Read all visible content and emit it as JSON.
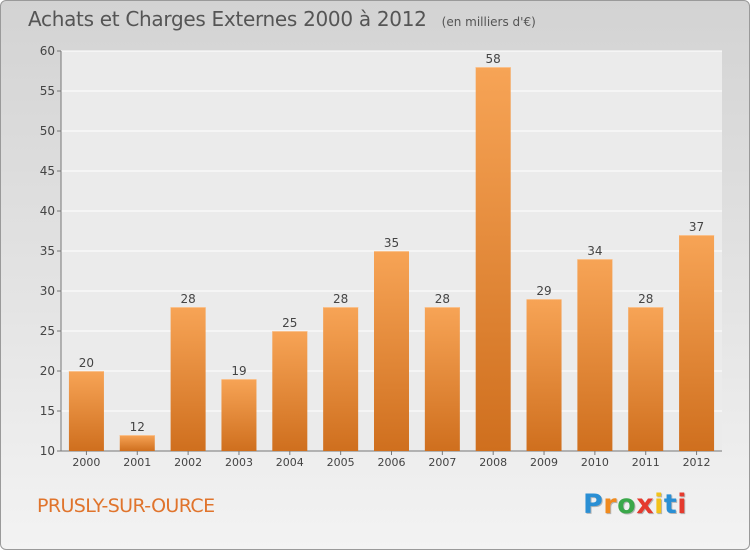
{
  "header": {
    "title": "Achats et Charges Externes 2000 à 2012",
    "unit": "(en milliers d'€)"
  },
  "footer": {
    "commune": "PRUSLY-SUR-OURCE",
    "logo_text": "Proxiti"
  },
  "colors": {
    "bar_light": "#f7a456",
    "bar_dark": "#cf6f1e",
    "commune": "#e0742c",
    "logo": [
      "#2a8fd4",
      "#f08a1e",
      "#3aa84a",
      "#e53a2e",
      "#f2c21a",
      "#2a8fd4",
      "#e53a2e"
    ]
  },
  "chart_data": {
    "type": "bar",
    "categories": [
      "2000",
      "2001",
      "2002",
      "2003",
      "2004",
      "2005",
      "2006",
      "2007",
      "2008",
      "2009",
      "2010",
      "2011",
      "2012"
    ],
    "values": [
      20,
      12,
      28,
      19,
      25,
      28,
      35,
      28,
      58,
      29,
      34,
      28,
      37
    ],
    "ylim": [
      10,
      60
    ],
    "yticks": [
      10,
      15,
      20,
      25,
      30,
      35,
      40,
      45,
      50,
      55,
      60
    ],
    "grid": true
  }
}
